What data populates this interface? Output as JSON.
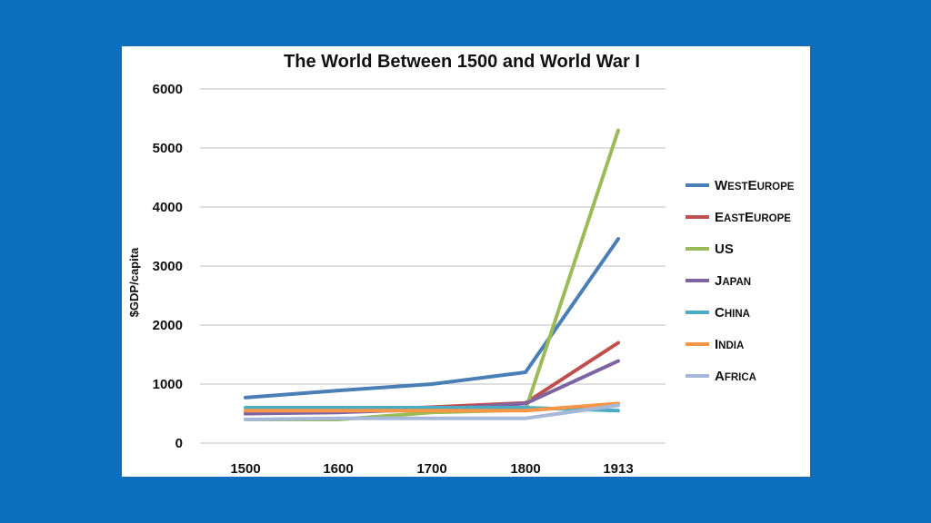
{
  "chart_data": {
    "type": "line",
    "title": "The World Between 1500 and World War I",
    "ylabel": "$GDP/capita",
    "xlabel": "",
    "categories": [
      "1500",
      "1600",
      "1700",
      "1800",
      "1913"
    ],
    "ylim": [
      0,
      6000
    ],
    "yticks": [
      "0",
      "1000",
      "2000",
      "3000",
      "4000",
      "5000",
      "6000"
    ],
    "grid": true,
    "legend_position": "right",
    "series": [
      {
        "name": "WestEurope",
        "label_parts": [
          [
            "W",
            "EST"
          ],
          [
            "E",
            "UROPE"
          ]
        ],
        "color": "#4a7fb5",
        "values": [
          770,
          890,
          1000,
          1200,
          3460
        ]
      },
      {
        "name": "EastEurope",
        "label_parts": [
          [
            "E",
            "AST"
          ],
          [
            "E",
            "UROPE"
          ]
        ],
        "color": "#c0504d",
        "values": [
          500,
          550,
          610,
          680,
          1700
        ]
      },
      {
        "name": "US",
        "label_parts": [
          [
            "US",
            ""
          ]
        ],
        "color": "#9bbb59",
        "values": [
          400,
          400,
          520,
          560,
          5300
        ]
      },
      {
        "name": "Japan",
        "label_parts": [
          [
            "J",
            "APAN"
          ]
        ],
        "color": "#8064a2",
        "values": [
          500,
          520,
          570,
          670,
          1390
        ]
      },
      {
        "name": "China",
        "label_parts": [
          [
            "C",
            "HINA"
          ]
        ],
        "color": "#4bacc6",
        "values": [
          600,
          600,
          600,
          600,
          550
        ]
      },
      {
        "name": "India",
        "label_parts": [
          [
            "I",
            "NDIA"
          ]
        ],
        "color": "#f79646",
        "values": [
          550,
          550,
          550,
          550,
          670
        ]
      },
      {
        "name": "Africa",
        "label_parts": [
          [
            "A",
            "FRICA"
          ]
        ],
        "color": "#a5b8d9",
        "values": [
          400,
          420,
          420,
          420,
          640
        ]
      }
    ]
  }
}
